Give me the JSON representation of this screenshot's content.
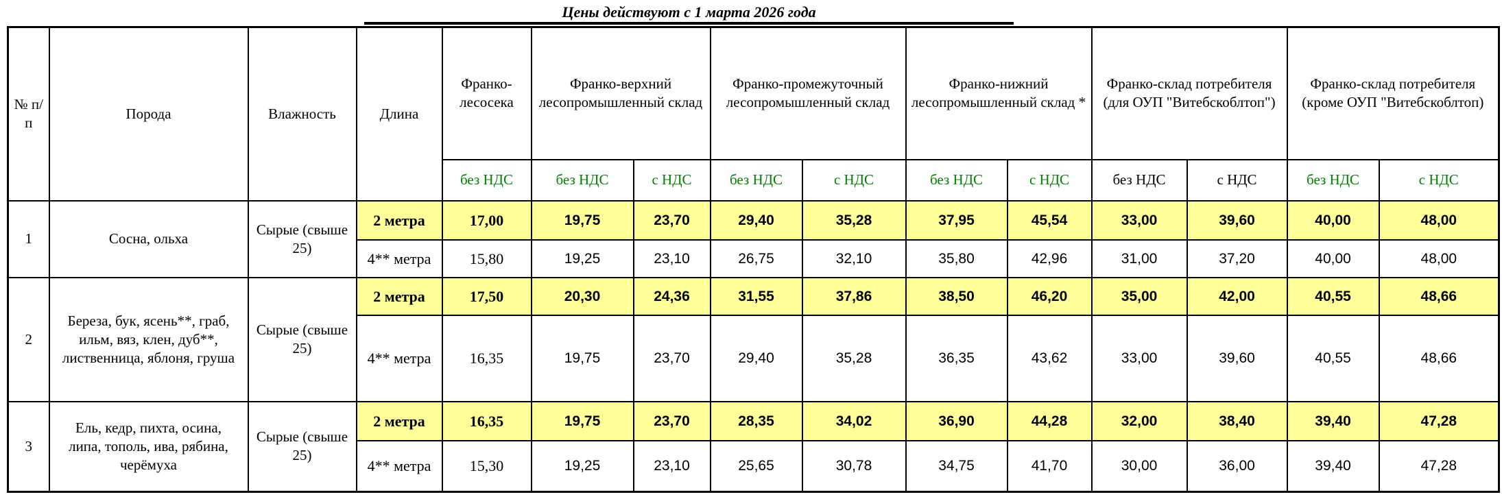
{
  "title": "Цены действуют с 1 марта  2026 года",
  "colors": {
    "price_label_green": "#008000",
    "highlight_yellow": "#ffff99"
  },
  "headers": {
    "num": "№ п/п",
    "species": "Порода",
    "humidity": "Влажность",
    "length": "Длина",
    "groups": [
      "Франко-лесосека",
      "Франко-верхний лесопромышленный склад",
      "Франко-промежуточный лесопромышленный склад",
      "Франко-нижний лесопромышленный склад *",
      "Франко-склад потребителя (для ОУП \"Витебскоблтоп\")",
      "Франко-склад потребителя (кроме ОУП \"Витебскоблтоп)"
    ],
    "sub": [
      "без НДС",
      "без НДС",
      "с НДС",
      "без НДС",
      "с НДС",
      "без НДС",
      "с НДС",
      "без НДС",
      "с НДС",
      "без НДС",
      "с НДС"
    ]
  },
  "rows": [
    {
      "num": "1",
      "species": "Сосна, ольха",
      "humidity": "Сырые (свыше 25)",
      "lines": [
        {
          "length": "2 метра",
          "highlight": true,
          "prices": [
            "17,00",
            "19,75",
            "23,70",
            "29,40",
            "35,28",
            "37,95",
            "45,54",
            "33,00",
            "39,60",
            "40,00",
            "48,00"
          ]
        },
        {
          "length": "4** метра",
          "highlight": false,
          "prices": [
            "15,80",
            "19,25",
            "23,10",
            "26,75",
            "32,10",
            "35,80",
            "42,96",
            "31,00",
            "37,20",
            "40,00",
            "48,00"
          ]
        }
      ]
    },
    {
      "num": "2",
      "species": "Береза, бук, ясень**, граб, ильм, вяз, клен, дуб**, лиственница, яблоня, груша",
      "humidity": "Сырые (свыше 25)",
      "lines": [
        {
          "length": "2 метра",
          "highlight": true,
          "prices": [
            "17,50",
            "20,30",
            "24,36",
            "31,55",
            "37,86",
            "38,50",
            "46,20",
            "35,00",
            "42,00",
            "40,55",
            "48,66"
          ]
        },
        {
          "length": "4** метра",
          "highlight": false,
          "prices": [
            "16,35",
            "19,75",
            "23,70",
            "29,40",
            "35,28",
            "36,35",
            "43,62",
            "33,00",
            "39,60",
            "40,55",
            "48,66"
          ]
        }
      ]
    },
    {
      "num": "3",
      "species": "Ель, кедр, пихта, осина, липа, тополь, ива, рябина, черёмуха",
      "humidity": "Сырые (свыше 25)",
      "lines": [
        {
          "length": "2 метра",
          "highlight": true,
          "prices": [
            "16,35",
            "19,75",
            "23,70",
            "28,35",
            "34,02",
            "36,90",
            "44,28",
            "32,00",
            "38,40",
            "39,40",
            "47,28"
          ]
        },
        {
          "length": "4** метра",
          "highlight": false,
          "prices": [
            "15,30",
            "19,25",
            "23,10",
            "25,65",
            "30,78",
            "34,75",
            "41,70",
            "30,00",
            "36,00",
            "39,40",
            "47,28"
          ]
        }
      ]
    }
  ]
}
